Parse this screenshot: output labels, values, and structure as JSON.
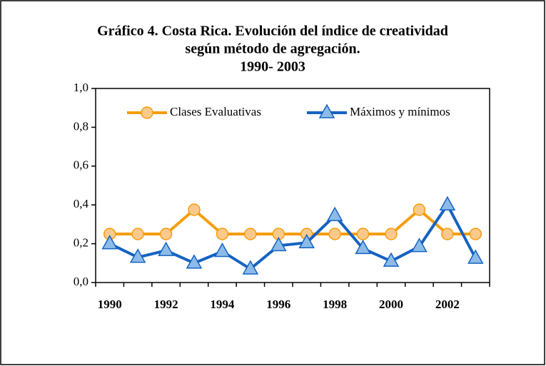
{
  "chart_data": {
    "type": "line",
    "title": [
      "Gráfico 4. Costa Rica. Evolución del índice de creatividad",
      "según método de agregación.",
      "1990- 2003"
    ],
    "categories": [
      "1990",
      null,
      "1992",
      null,
      "1994",
      null,
      "1996",
      null,
      "1998",
      null,
      "2000",
      null,
      "2002",
      null
    ],
    "series": [
      {
        "name": "Clases Evaluativas",
        "color": "#f59d0a",
        "marker": "circle",
        "values": [
          0.25,
          0.25,
          0.25,
          0.375,
          0.25,
          0.25,
          0.25,
          0.25,
          0.25,
          0.25,
          0.25,
          0.375,
          0.25,
          0.25
        ]
      },
      {
        "name": "Máximos y mínimos",
        "color": "#1463c2",
        "marker": "triangle",
        "values": [
          0.2,
          0.13,
          0.165,
          0.1,
          0.16,
          0.07,
          0.19,
          0.205,
          0.345,
          0.175,
          0.11,
          0.185,
          0.4,
          0.125
        ]
      }
    ],
    "ylim": [
      0,
      1
    ],
    "yticks": [
      {
        "value": 0,
        "label": "0,0"
      },
      {
        "value": 0.2,
        "label": "0,2"
      },
      {
        "value": 0.4,
        "label": "0,4"
      },
      {
        "value": 0.6,
        "label": "0,6"
      },
      {
        "value": 0.8,
        "label": "0,8"
      },
      {
        "value": 1,
        "label": "1,0"
      }
    ],
    "legend": "top"
  }
}
